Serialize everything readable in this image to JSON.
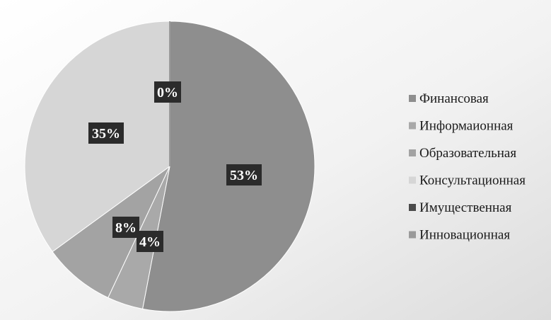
{
  "chart_data": {
    "type": "pie",
    "title": "",
    "legend_position": "right",
    "start_angle_deg": 0,
    "direction": "clockwise",
    "slices": [
      {
        "name": "Финансовая",
        "value": 53,
        "label": "53%",
        "color": "#8e8e8e"
      },
      {
        "name": "Информаионная",
        "value": 4,
        "label": "4%",
        "color": "#a9a9a9"
      },
      {
        "name": "Образовательная",
        "value": 8,
        "label": "8%",
        "color": "#a3a3a3"
      },
      {
        "name": "Консультационная",
        "value": 35,
        "label": "35%",
        "color": "#d6d6d6"
      },
      {
        "name": "Имущественная",
        "value": 0,
        "label": "0%",
        "color": "#4a4a4a"
      },
      {
        "name": "Инновационная",
        "value": 0,
        "label": "",
        "color": "#9a9a9a"
      }
    ],
    "label_box_color": "#2b2b2b",
    "label_text_color": "#ffffff"
  }
}
